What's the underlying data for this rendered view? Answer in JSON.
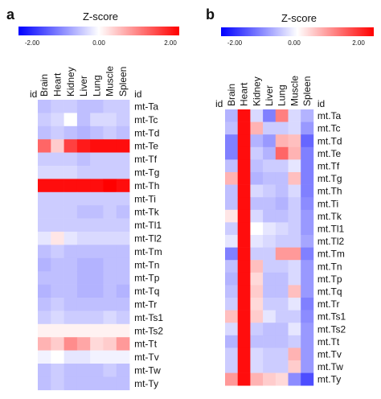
{
  "panels": [
    {
      "letter": "a",
      "colorbar": {
        "title": "Z-score",
        "min_label": "-2.00",
        "mid_label": "0.00",
        "max_label": "2.00"
      }
    },
    {
      "letter": "b",
      "colorbar": {
        "title": "Z-score",
        "min_label": "-2.00",
        "mid_label": "0.00",
        "max_label": "2.00"
      }
    }
  ],
  "colors": {
    "low": "#0000ff",
    "mid": "#ffffff",
    "high": "#ff0000"
  },
  "chart_data": [
    {
      "type": "heatmap",
      "panel": "a",
      "id_label": "id",
      "columns": [
        "Brain",
        "Heart",
        "Kidney",
        "Liver",
        "Lung",
        "Muscle",
        "Spleen"
      ],
      "rows": [
        "mt-Ta",
        "mt-Tc",
        "mt-Td",
        "mt-Te",
        "mt-Tf",
        "mt-Tg",
        "mt-Th",
        "mt-Ti",
        "mt-Tk",
        "mt-Tl1",
        "mt-Tl2",
        "mt-Tm",
        "mt-Tn",
        "mt-Tp",
        "mt-Tq",
        "mt-Tr",
        "mt-Ts1",
        "mt-Ts2",
        "mt-Tt",
        "mt-Tv",
        "mt-Tw",
        "mt-Ty"
      ],
      "zlim": [
        -2,
        2
      ],
      "values": [
        [
          -0.5,
          -0.4,
          -0.4,
          -0.5,
          -0.5,
          -0.4,
          -0.4
        ],
        [
          -0.4,
          -0.3,
          0.0,
          -0.5,
          -0.3,
          -0.3,
          -0.4
        ],
        [
          -0.5,
          -0.4,
          -0.5,
          -0.6,
          -0.5,
          -0.4,
          -0.5
        ],
        [
          1.2,
          0.4,
          1.5,
          1.8,
          1.9,
          1.9,
          1.9
        ],
        [
          -0.4,
          -0.4,
          -0.4,
          -0.5,
          -0.4,
          -0.4,
          -0.4
        ],
        [
          -0.3,
          -0.3,
          -0.3,
          -0.4,
          -0.4,
          -0.4,
          -0.4
        ],
        [
          1.9,
          1.9,
          1.9,
          1.9,
          1.9,
          2.0,
          1.9
        ],
        [
          -0.4,
          -0.4,
          -0.4,
          -0.4,
          -0.4,
          -0.4,
          -0.4
        ],
        [
          -0.4,
          -0.4,
          -0.4,
          -0.5,
          -0.5,
          -0.4,
          -0.5
        ],
        [
          -0.4,
          -0.4,
          -0.4,
          -0.4,
          -0.4,
          -0.4,
          -0.4
        ],
        [
          -0.2,
          0.2,
          -0.2,
          -0.3,
          -0.3,
          -0.3,
          -0.3
        ],
        [
          -0.5,
          -0.4,
          -0.5,
          -0.5,
          -0.5,
          -0.5,
          -0.5
        ],
        [
          -0.6,
          -0.5,
          -0.5,
          -0.6,
          -0.6,
          -0.5,
          -0.5
        ],
        [
          -0.5,
          -0.5,
          -0.5,
          -0.6,
          -0.6,
          -0.5,
          -0.5
        ],
        [
          -0.6,
          -0.5,
          -0.5,
          -0.6,
          -0.6,
          -0.5,
          -0.6
        ],
        [
          -0.5,
          -0.4,
          -0.5,
          -0.5,
          -0.5,
          -0.5,
          -0.5
        ],
        [
          -0.4,
          -0.3,
          -0.4,
          -0.4,
          -0.4,
          -0.3,
          -0.4
        ],
        [
          0.1,
          0.1,
          0.1,
          0.1,
          0.1,
          0.1,
          0.1
        ],
        [
          0.6,
          0.4,
          0.9,
          0.7,
          0.3,
          0.4,
          0.8
        ],
        [
          -0.1,
          0.0,
          -0.2,
          -0.2,
          -0.1,
          -0.1,
          -0.1
        ],
        [
          -0.5,
          -0.4,
          -0.5,
          -0.5,
          -0.5,
          -0.4,
          -0.5
        ],
        [
          -0.5,
          -0.4,
          -0.5,
          -0.5,
          -0.5,
          -0.5,
          -0.5
        ]
      ]
    },
    {
      "type": "heatmap",
      "panel": "b",
      "id_label": "id",
      "columns": [
        "Brain",
        "Heart",
        "Kidney",
        "Liver",
        "Lung",
        "Muscle",
        "Spleen"
      ],
      "rows": [
        "mt.Ta",
        "mt.Tc",
        "mt.Td",
        "mt.Te",
        "mt.Tf",
        "mt.Tg",
        "mt.Th",
        "mt.Ti",
        "mt.Tk",
        "mt.Tl1",
        "mt.Tl2",
        "mt.Tm",
        "mt.Tn",
        "mt.Tp",
        "mt.Tq",
        "mt.Tr",
        "mt.Ts1",
        "mt.Ts2",
        "mt.Tt",
        "mt.Tv",
        "mt.Tw",
        "mt.Ty"
      ],
      "zlim": [
        -2,
        2
      ],
      "values": [
        [
          -0.6,
          1.9,
          -0.3,
          -1.0,
          1.0,
          -0.3,
          -0.6
        ],
        [
          -0.5,
          1.9,
          0.6,
          -0.4,
          -0.4,
          -0.3,
          -0.8
        ],
        [
          -1.0,
          1.9,
          -0.6,
          -0.8,
          0.6,
          0.5,
          -1.2
        ],
        [
          -1.0,
          1.9,
          -0.4,
          -0.6,
          1.2,
          0.6,
          -1.0
        ],
        [
          -0.5,
          1.9,
          -0.5,
          -0.4,
          -0.4,
          -0.2,
          -1.0
        ],
        [
          0.6,
          1.9,
          -0.6,
          -0.5,
          -0.5,
          0.5,
          -1.0
        ],
        [
          -0.5,
          1.9,
          -0.3,
          -0.4,
          -0.5,
          -0.3,
          -1.0
        ],
        [
          -0.5,
          1.9,
          -0.5,
          -0.5,
          -0.6,
          -0.4,
          -0.9
        ],
        [
          0.2,
          1.9,
          -0.3,
          -0.5,
          -0.5,
          -0.4,
          -0.8
        ],
        [
          -0.4,
          1.9,
          0.0,
          -0.2,
          -0.3,
          -0.4,
          -0.8
        ],
        [
          -0.2,
          1.9,
          -0.2,
          -0.3,
          -0.4,
          -0.4,
          -0.7
        ],
        [
          -1.0,
          1.9,
          -0.4,
          -0.4,
          0.8,
          0.8,
          -1.0
        ],
        [
          -0.5,
          1.9,
          0.5,
          -0.4,
          -0.4,
          -0.3,
          -0.8
        ],
        [
          -0.6,
          1.9,
          0.3,
          -0.5,
          -0.5,
          -0.3,
          -0.8
        ],
        [
          -0.5,
          1.9,
          0.4,
          -0.5,
          -0.5,
          0.5,
          -0.8
        ],
        [
          -0.4,
          1.9,
          0.3,
          -0.4,
          -0.4,
          -0.2,
          -1.0
        ],
        [
          0.5,
          1.9,
          0.4,
          -0.2,
          -0.4,
          -0.4,
          -0.9
        ],
        [
          -0.3,
          1.9,
          -0.4,
          -0.5,
          -0.5,
          -0.2,
          -0.8
        ],
        [
          -0.6,
          1.9,
          -0.5,
          -0.5,
          -0.5,
          -0.4,
          -0.8
        ],
        [
          -0.4,
          1.9,
          -0.3,
          -0.4,
          -0.4,
          0.6,
          -0.8
        ],
        [
          -0.4,
          1.9,
          -0.3,
          -0.4,
          -0.4,
          0.4,
          -0.8
        ],
        [
          0.8,
          1.9,
          0.6,
          0.4,
          0.3,
          -0.9,
          -1.4
        ]
      ]
    }
  ]
}
